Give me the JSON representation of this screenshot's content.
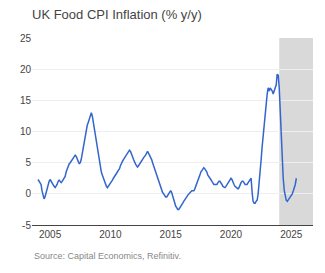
{
  "chart_data": {
    "type": "line",
    "title": "UK Food CPI Inflation (% y/y)",
    "annotations": [
      "Source: Capital Economics, Refinitiv."
    ],
    "color": "#3366cc",
    "shade_from": 2024.0,
    "shade_color": "#d9d9d9",
    "xlim": [
      2003.5,
      2026.8
    ],
    "xticks": [
      2005,
      2010,
      2015,
      2020,
      2025
    ],
    "ylim": [
      -5,
      25
    ],
    "yticks": [
      -5,
      0,
      5,
      10,
      15,
      20,
      25
    ],
    "grid": "y",
    "x": [
      2004.0,
      2004.08,
      2004.17,
      2004.25,
      2004.33,
      2004.42,
      2004.5,
      2004.58,
      2004.67,
      2004.75,
      2004.83,
      2004.92,
      2005.0,
      2005.08,
      2005.17,
      2005.25,
      2005.33,
      2005.42,
      2005.5,
      2005.58,
      2005.67,
      2005.75,
      2005.83,
      2005.92,
      2006.0,
      2006.08,
      2006.17,
      2006.25,
      2006.33,
      2006.42,
      2006.5,
      2006.58,
      2006.67,
      2006.75,
      2006.83,
      2006.92,
      2007.0,
      2007.08,
      2007.17,
      2007.25,
      2007.33,
      2007.42,
      2007.5,
      2007.58,
      2007.67,
      2007.75,
      2007.83,
      2007.92,
      2008.0,
      2008.08,
      2008.17,
      2008.25,
      2008.33,
      2008.42,
      2008.5,
      2008.58,
      2008.67,
      2008.75,
      2008.83,
      2008.92,
      2009.0,
      2009.08,
      2009.17,
      2009.25,
      2009.33,
      2009.42,
      2009.5,
      2009.58,
      2009.67,
      2009.75,
      2009.83,
      2009.92,
      2010.0,
      2010.08,
      2010.17,
      2010.25,
      2010.33,
      2010.42,
      2010.5,
      2010.58,
      2010.67,
      2010.75,
      2010.83,
      2010.92,
      2011.0,
      2011.08,
      2011.17,
      2011.25,
      2011.33,
      2011.42,
      2011.5,
      2011.58,
      2011.67,
      2011.75,
      2011.83,
      2011.92,
      2012.0,
      2012.08,
      2012.17,
      2012.25,
      2012.33,
      2012.42,
      2012.5,
      2012.58,
      2012.67,
      2012.75,
      2012.83,
      2012.92,
      2013.0,
      2013.08,
      2013.17,
      2013.25,
      2013.33,
      2013.42,
      2013.5,
      2013.58,
      2013.67,
      2013.75,
      2013.83,
      2013.92,
      2014.0,
      2014.08,
      2014.17,
      2014.25,
      2014.33,
      2014.42,
      2014.5,
      2014.58,
      2014.67,
      2014.75,
      2014.83,
      2014.92,
      2015.0,
      2015.08,
      2015.17,
      2015.25,
      2015.33,
      2015.42,
      2015.5,
      2015.58,
      2015.67,
      2015.75,
      2015.83,
      2015.92,
      2016.0,
      2016.08,
      2016.17,
      2016.25,
      2016.33,
      2016.42,
      2016.5,
      2016.58,
      2016.67,
      2016.75,
      2016.83,
      2016.92,
      2017.0,
      2017.08,
      2017.17,
      2017.25,
      2017.33,
      2017.42,
      2017.5,
      2017.58,
      2017.67,
      2017.75,
      2017.83,
      2017.92,
      2018.0,
      2018.08,
      2018.17,
      2018.25,
      2018.33,
      2018.42,
      2018.5,
      2018.58,
      2018.67,
      2018.75,
      2018.83,
      2018.92,
      2019.0,
      2019.08,
      2019.17,
      2019.25,
      2019.33,
      2019.42,
      2019.5,
      2019.58,
      2019.67,
      2019.75,
      2019.83,
      2019.92,
      2020.0,
      2020.08,
      2020.17,
      2020.25,
      2020.33,
      2020.42,
      2020.5,
      2020.58,
      2020.67,
      2020.75,
      2020.83,
      2020.92,
      2021.0,
      2021.08,
      2021.17,
      2021.25,
      2021.33,
      2021.42,
      2021.5,
      2021.58,
      2021.67,
      2021.75,
      2021.83,
      2021.92,
      2022.0,
      2022.08,
      2022.17,
      2022.25,
      2022.33,
      2022.42,
      2022.5,
      2022.58,
      2022.67,
      2022.75,
      2022.83,
      2022.92,
      2023.0,
      2023.08,
      2023.17,
      2023.25,
      2023.33,
      2023.42,
      2023.5,
      2023.58,
      2023.67,
      2023.75,
      2023.83,
      2023.92,
      2024.0,
      2024.08,
      2024.17,
      2024.25,
      2024.33,
      2024.42,
      2024.5,
      2024.58,
      2024.67,
      2024.75,
      2024.83,
      2024.92,
      2025.0,
      2025.08,
      2025.17,
      2025.25,
      2025.33,
      2025.42
    ],
    "values": [
      2.3,
      2.1,
      1.8,
      1.5,
      0.5,
      -0.5,
      -0.8,
      -0.5,
      0.2,
      0.8,
      1.5,
      2.0,
      2.3,
      2.0,
      1.8,
      1.5,
      1.2,
      1.0,
      1.2,
      1.5,
      2.0,
      2.2,
      2.0,
      1.8,
      2.0,
      2.2,
      2.5,
      2.8,
      3.5,
      4.0,
      4.5,
      4.8,
      5.0,
      5.2,
      5.5,
      5.8,
      6.0,
      6.2,
      6.0,
      5.5,
      5.0,
      4.8,
      5.0,
      5.5,
      6.5,
      7.5,
      8.5,
      9.5,
      10.0,
      11.0,
      11.5,
      12.0,
      12.5,
      13.0,
      12.5,
      11.5,
      10.5,
      9.5,
      8.0,
      7.0,
      6.0,
      5.0,
      4.0,
      3.5,
      3.0,
      2.5,
      2.0,
      1.5,
      1.2,
      1.0,
      1.2,
      1.5,
      1.8,
      2.0,
      2.2,
      2.5,
      2.8,
      3.0,
      3.2,
      3.5,
      3.8,
      4.0,
      4.5,
      5.0,
      5.2,
      5.5,
      5.8,
      6.0,
      6.2,
      6.5,
      6.8,
      7.0,
      6.8,
      6.5,
      6.0,
      5.5,
      5.0,
      4.8,
      4.5,
      4.3,
      4.5,
      4.8,
      5.0,
      5.2,
      5.5,
      5.8,
      6.0,
      6.2,
      6.5,
      6.8,
      6.5,
      6.2,
      5.8,
      5.5,
      5.0,
      4.5,
      4.0,
      3.5,
      3.0,
      2.5,
      2.0,
      1.5,
      1.0,
      0.5,
      0.2,
      0.0,
      -0.3,
      -0.5,
      -0.5,
      -0.3,
      0.0,
      0.2,
      0.5,
      0.2,
      -0.5,
      -1.0,
      -1.5,
      -2.0,
      -2.2,
      -2.5,
      -2.5,
      -2.3,
      -2.0,
      -1.8,
      -1.5,
      -1.2,
      -1.0,
      -0.8,
      -0.5,
      -0.2,
      0.0,
      0.2,
      0.3,
      0.5,
      0.5,
      0.5,
      0.8,
      1.2,
      1.5,
      2.0,
      2.5,
      3.0,
      3.5,
      3.8,
      4.0,
      4.2,
      4.0,
      3.8,
      3.5,
      3.0,
      2.8,
      2.5,
      2.3,
      2.0,
      1.8,
      1.5,
      1.5,
      1.5,
      1.5,
      1.8,
      2.0,
      2.0,
      1.8,
      1.5,
      1.2,
      1.0,
      1.0,
      1.2,
      1.5,
      1.8,
      2.0,
      2.2,
      2.5,
      2.3,
      2.0,
      1.5,
      1.2,
      1.0,
      0.8,
      0.8,
      1.0,
      1.5,
      1.8,
      2.0,
      2.0,
      1.8,
      1.5,
      1.5,
      1.5,
      1.8,
      2.0,
      2.3,
      2.5,
      0.3,
      -1.2,
      -1.5,
      -1.5,
      -1.2,
      -1.0,
      0.0,
      1.5,
      3.5,
      5.5,
      7.5,
      9.5,
      11.5,
      13.0,
      14.5,
      16.0,
      17.0,
      16.5,
      17.0,
      16.8,
      16.5,
      16.0,
      16.5,
      17.0,
      17.5,
      19.2,
      19.0,
      17.0,
      13.0,
      9.0,
      5.0,
      2.5,
      0.5,
      -0.5,
      -1.0,
      -1.2,
      -1.0,
      -0.8,
      -0.5,
      -0.3,
      0.0,
      0.5,
      1.0,
      1.5,
      2.5
    ]
  }
}
